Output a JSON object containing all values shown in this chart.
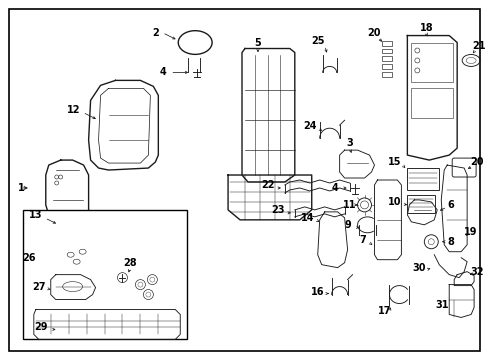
{
  "bg_color": "#ffffff",
  "fig_width": 4.89,
  "fig_height": 3.6,
  "line_color": "#1a1a1a",
  "lw": 0.65,
  "font_size": 7.0
}
